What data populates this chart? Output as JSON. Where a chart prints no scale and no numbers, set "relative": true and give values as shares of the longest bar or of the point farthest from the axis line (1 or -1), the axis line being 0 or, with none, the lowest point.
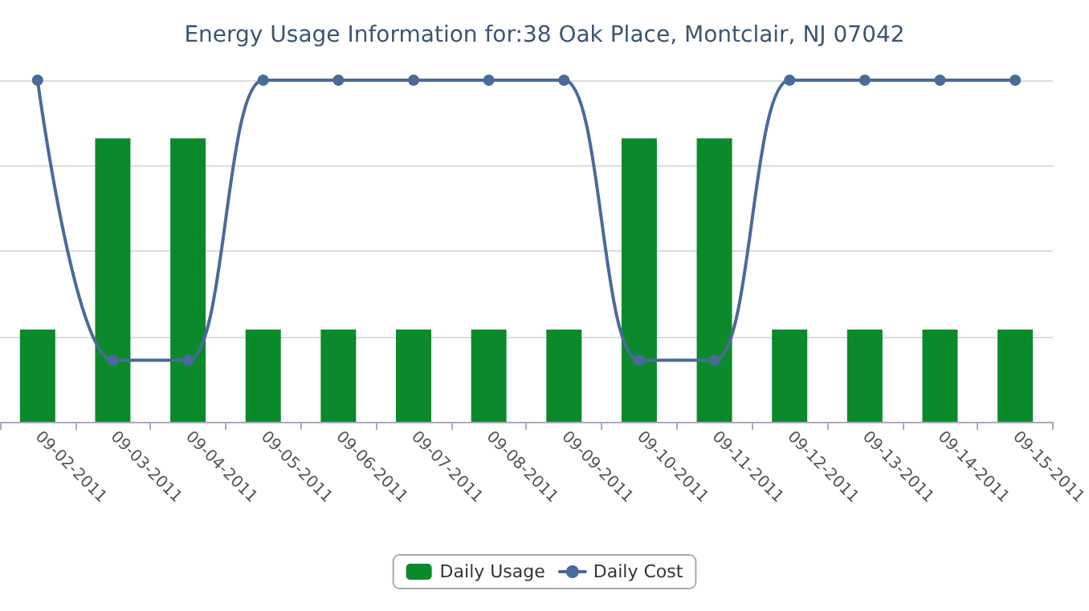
{
  "chart_data": {
    "type": "bar",
    "title": "Energy Usage Information for:38 Oak Place, Montclair, NJ 07042",
    "relative": true,
    "grid": "y",
    "legend": "bottom",
    "marker": "circle",
    "categories": [
      "09-02-2011",
      "09-03-2011",
      "09-04-2011",
      "09-05-2011",
      "09-06-2011",
      "09-07-2011",
      "09-08-2011",
      "09-09-2011",
      "09-10-2011",
      "09-11-2011",
      "09-12-2011",
      "09-13-2011",
      "09-14-2011",
      "09-15-2011"
    ],
    "series": [
      {
        "name": "Daily Usage",
        "color": "#0b8a2b",
        "values": [
          0.27,
          0.83,
          0.83,
          0.27,
          0.27,
          0.27,
          0.27,
          0.27,
          0.83,
          0.83,
          0.27,
          0.27,
          0.27,
          0.27
        ]
      },
      {
        "name": "Daily Cost",
        "type": "line",
        "color": "#4a6a9a",
        "values": [
          1,
          0.18,
          0.18,
          1,
          1,
          1,
          1,
          1,
          0.18,
          0.18,
          1,
          1,
          1,
          1
        ]
      }
    ]
  }
}
